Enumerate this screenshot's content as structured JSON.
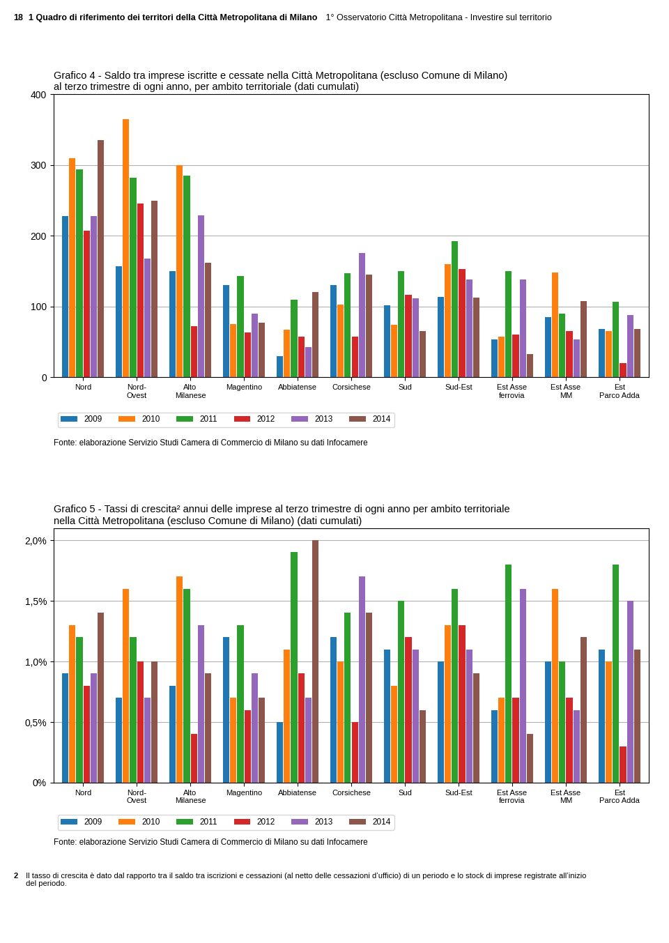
{
  "chart_data": [
    {
      "type": "bar",
      "title": "Grafico 4 - Saldo tra imprese iscritte e cessate nella Città Metropolitana (escluso Comune di Milano)\nal terzo trimestre di ogni anno, per ambito territoriale (dati cumulati)",
      "categories": [
        "Nord",
        "Nord-\nOvest",
        "Alto\nMilanese",
        "Magentino",
        "Abbiatense",
        "Corsichese",
        "Sud",
        "Sud-Est",
        "Est Asse\nferrovia",
        "Est Asse\nMM",
        "Est\nParco Adda"
      ],
      "series": [
        {
          "name": "2009",
          "values": [
            228,
            157,
            150,
            130,
            30,
            130,
            102,
            114,
            53,
            85,
            68
          ]
        },
        {
          "name": "2010",
          "values": [
            310,
            365,
            300,
            75,
            67,
            103,
            74,
            160,
            57,
            148,
            65
          ]
        },
        {
          "name": "2011",
          "values": [
            294,
            282,
            285,
            143,
            110,
            147,
            150,
            192,
            150,
            90,
            107
          ]
        },
        {
          "name": "2012",
          "values": [
            207,
            246,
            72,
            63,
            57,
            57,
            116,
            153,
            60,
            65,
            20
          ]
        },
        {
          "name": "2013",
          "values": [
            228,
            168,
            229,
            90,
            43,
            176,
            112,
            138,
            138,
            53,
            88
          ]
        },
        {
          "name": "2014",
          "values": [
            335,
            250,
            162,
            77,
            120,
            145,
            65,
            113,
            33,
            108,
            68
          ]
        }
      ],
      "ylim": [
        0,
        400
      ],
      "yticks": [
        0,
        100,
        200,
        300,
        400
      ],
      "grid": true,
      "legend": "upper left",
      "annotations": [
        "Fonte: elaborazione Servizio Studi Camera di Commercio di Milano su dati Infocamere"
      ]
    },
    {
      "type": "bar",
      "title": "Grafico 5 - Tassi di crescita² annui delle imprese al terzo trimestre di ogni anno per ambito territoriale\nnella Città Metropolitana (escluso Comune di Milano) (dati cumulati)",
      "categories": [
        "Nord",
        "Nord-\nOvest",
        "Alto\nMilanese",
        "Magentino",
        "Abbiatense",
        "Corsichese",
        "Sud",
        "Sud-Est",
        "Est Asse\nferrovia",
        "Est Asse\nMM",
        "Est\nParco Adda"
      ],
      "series": [
        {
          "name": "2009",
          "values": [
            0.009,
            0.007,
            0.008,
            0.012,
            0.005,
            0.012,
            0.011,
            0.01,
            0.006,
            0.01,
            0.011
          ]
        },
        {
          "name": "2010",
          "values": [
            0.013,
            0.016,
            0.017,
            0.007,
            0.011,
            0.01,
            0.008,
            0.013,
            0.007,
            0.016,
            0.01
          ]
        },
        {
          "name": "2011",
          "values": [
            0.012,
            0.012,
            0.016,
            0.013,
            0.019,
            0.014,
            0.015,
            0.016,
            0.018,
            0.01,
            0.018
          ]
        },
        {
          "name": "2012",
          "values": [
            0.008,
            0.01,
            0.004,
            0.006,
            0.009,
            0.005,
            0.012,
            0.013,
            0.007,
            0.007,
            0.003
          ]
        },
        {
          "name": "2013",
          "values": [
            0.009,
            0.007,
            0.013,
            0.009,
            0.007,
            0.017,
            0.011,
            0.011,
            0.016,
            0.006,
            0.015
          ]
        },
        {
          "name": "2014",
          "values": [
            0.014,
            0.01,
            0.009,
            0.007,
            0.02,
            0.014,
            0.006,
            0.009,
            0.004,
            0.012,
            0.011
          ]
        }
      ],
      "ylim": [
        0,
        0.021
      ],
      "yticks": [
        {
          "value": 0.0,
          "label": "0%"
        },
        {
          "value": 0.005,
          "label": "0,5%"
        },
        {
          "value": 0.01,
          "label": "1,0%"
        },
        {
          "value": 0.015,
          "label": "1,5%"
        },
        {
          "value": 0.02,
          "label": "2,0%"
        }
      ],
      "grid": true,
      "legend": "upper left",
      "annotations": [
        "Fonte: elaborazione Servizio Studi Camera di Commercio di Milano su dati Infocamere"
      ]
    }
  ],
  "annotations": [
    [
      "18",
      "1 Quadro di riferimento dei territori della Città Metropolitana di Milano",
      " 1° Osservatorio Città Metropolitana - Investire sul territorio"
    ],
    [
      "2",
      " Il tasso di crescita è dato dal rapporto tra il saldo tra iscrizioni e cessazioni (al netto delle cessazioni d’ufficio) di un periodo e lo stock di imprese registrate all’inizio\n del periodo."
    ]
  ]
}
